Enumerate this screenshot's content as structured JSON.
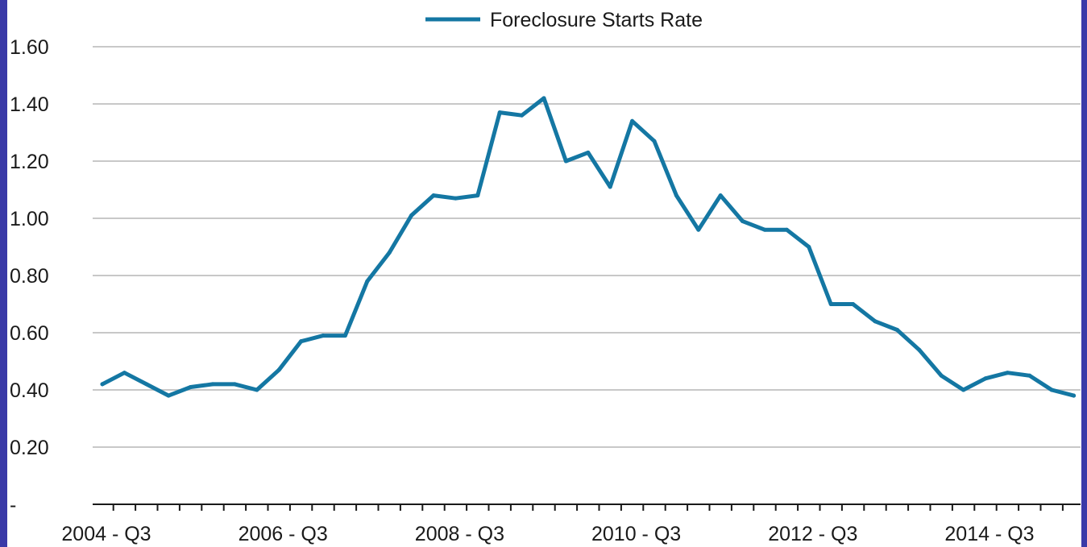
{
  "colors": {
    "series": "#1477a3",
    "frame": "#3a3aa8"
  },
  "chart_data": {
    "type": "line",
    "title": "",
    "xlabel": "",
    "ylabel": "",
    "ylim": [
      0,
      1.6
    ],
    "grid": true,
    "legend_position": "top-center",
    "y_ticks": [
      {
        "value": 0,
        "label": "-"
      },
      {
        "value": 0.2,
        "label": "0.20"
      },
      {
        "value": 0.4,
        "label": "0.40"
      },
      {
        "value": 0.6,
        "label": "0.60"
      },
      {
        "value": 0.8,
        "label": "0.80"
      },
      {
        "value": 1.0,
        "label": "1.00"
      },
      {
        "value": 1.2,
        "label": "1.20"
      },
      {
        "value": 1.4,
        "label": "1.40"
      },
      {
        "value": 1.6,
        "label": "1.60"
      }
    ],
    "x_tick_labels": [
      {
        "quarter": "2004 - Q3",
        "label": "2004 - Q3"
      },
      {
        "quarter": "2006 - Q3",
        "label": "2006 - Q3"
      },
      {
        "quarter": "2008 - Q3",
        "label": "2008 - Q3"
      },
      {
        "quarter": "2010 - Q3",
        "label": "2010 - Q3"
      },
      {
        "quarter": "2012 - Q3",
        "label": "2012 - Q3"
      },
      {
        "quarter": "2014 - Q3",
        "label": "2014 - Q3"
      }
    ],
    "x": [
      "2004 - Q3",
      "2004 - Q4",
      "2005 - Q1",
      "2005 - Q2",
      "2005 - Q3",
      "2005 - Q4",
      "2006 - Q1",
      "2006 - Q2",
      "2006 - Q3",
      "2006 - Q4",
      "2007 - Q1",
      "2007 - Q2",
      "2007 - Q3",
      "2007 - Q4",
      "2008 - Q1",
      "2008 - Q2",
      "2008 - Q3",
      "2008 - Q4",
      "2009 - Q1",
      "2009 - Q2",
      "2009 - Q3",
      "2009 - Q4",
      "2010 - Q1",
      "2010 - Q2",
      "2010 - Q3",
      "2010 - Q4",
      "2011 - Q1",
      "2011 - Q2",
      "2011 - Q3",
      "2011 - Q4",
      "2012 - Q1",
      "2012 - Q2",
      "2012 - Q3",
      "2012 - Q4",
      "2013 - Q1",
      "2013 - Q2",
      "2013 - Q3",
      "2013 - Q4",
      "2014 - Q1",
      "2014 - Q2",
      "2014 - Q3",
      "2014 - Q4",
      "2015 - Q1",
      "2015 - Q2",
      "2015 - Q3"
    ],
    "series": [
      {
        "name": "Foreclosure Starts Rate",
        "values": [
          0.42,
          0.46,
          0.42,
          0.38,
          0.41,
          0.42,
          0.42,
          0.4,
          0.47,
          0.57,
          0.59,
          0.59,
          0.78,
          0.88,
          1.01,
          1.08,
          1.07,
          1.08,
          1.37,
          1.36,
          1.42,
          1.2,
          1.23,
          1.11,
          1.34,
          1.27,
          1.08,
          0.96,
          1.08,
          0.99,
          0.96,
          0.96,
          0.9,
          0.7,
          0.7,
          0.64,
          0.61,
          0.54,
          0.45,
          0.4,
          0.44,
          0.46,
          0.45,
          0.4,
          0.38
        ]
      }
    ]
  }
}
